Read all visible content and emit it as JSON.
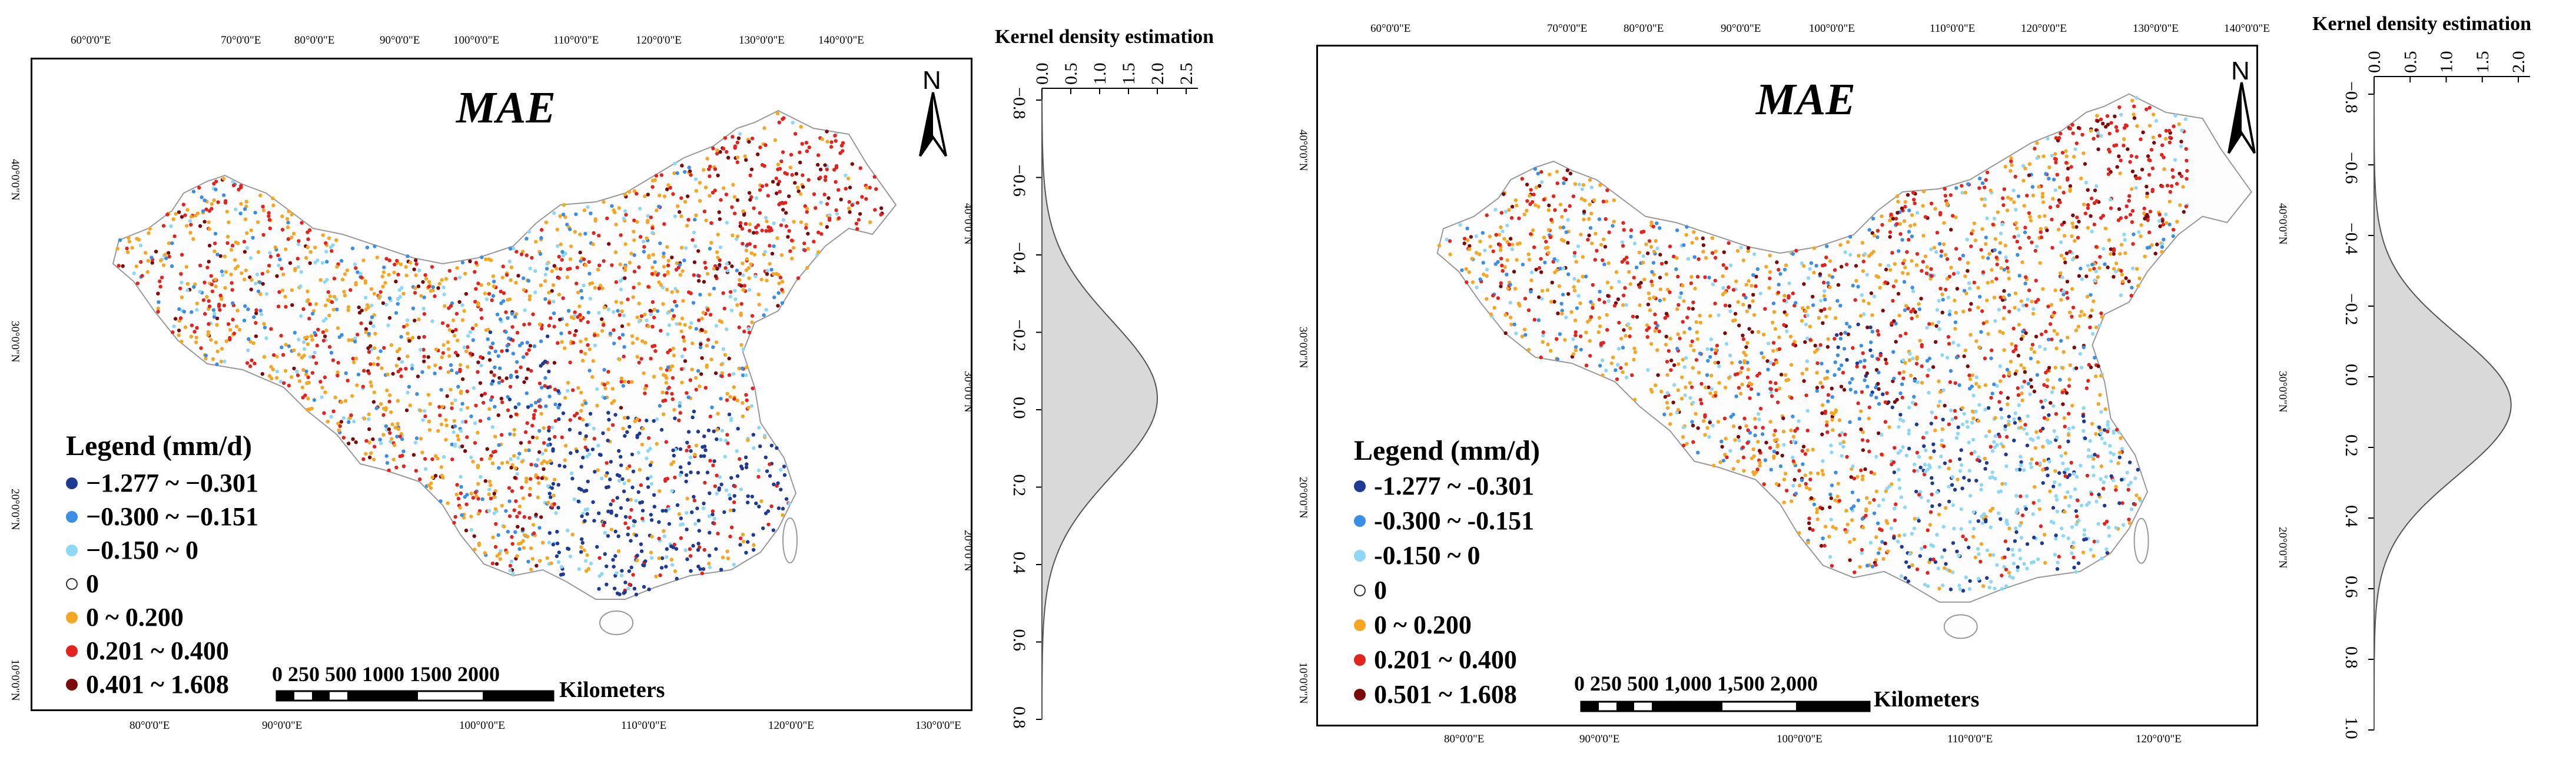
{
  "maps": [
    {
      "title": "MAE",
      "north_label": "N",
      "top_lon_labels": [
        "60°0'0\"E",
        "70°0'0\"E",
        "80°0'0\"E",
        "90°0'0\"E",
        "100°0'0\"E",
        "110°0'0\"E",
        "120°0'0\"E",
        "130°0'0\"E",
        "140°0'0\"E"
      ],
      "bottom_lon_labels": [
        "80°0'0\"E",
        "90°0'0\"E",
        "100°0'0\"E",
        "110°0'0\"E",
        "120°0'0\"E",
        "130°0'0\"E"
      ],
      "left_lat_labels": [
        "40°0'0\"N",
        "30°0'0\"N",
        "20°0'0\"N",
        "10°0'0\"N"
      ],
      "right_lat_labels": [
        "40°0'0\"N",
        "30°0'0\"N",
        "20°0'0\"N"
      ],
      "legend": {
        "title": "Legend (mm/d)",
        "items": [
          {
            "label": "−1.277 ~ −0.301",
            "color": "#1f3a93"
          },
          {
            "label": "−0.300 ~ −0.151",
            "color": "#3a8ee6"
          },
          {
            "label": "−0.150 ~ 0",
            "color": "#8fd8f5"
          },
          {
            "label": "0",
            "color": "#ffffff"
          },
          {
            "label": "0 ~ 0.200",
            "color": "#f5a623"
          },
          {
            "label": "0.201 ~ 0.400",
            "color": "#e3231d"
          },
          {
            "label": "0.401 ~ 1.608",
            "color": "#7d0a0a"
          }
        ]
      },
      "scale_bar": {
        "numbers": "0   250 500     1000     1500    2000",
        "unit": "Kilometers"
      },
      "kde": {
        "title": "Kernel density estimation",
        "x_ticks": [
          "0.0",
          "0.5",
          "1.0",
          "1.5",
          "2.0",
          "2.5"
        ],
        "y_ticks": [
          "−0.8",
          "−0.6",
          "−0.4",
          "−0.2",
          "0.0",
          "0.2",
          "0.4",
          "0.6",
          "0.8"
        ],
        "x_range": [
          0,
          2.5
        ],
        "y_range": [
          -0.8,
          0.8
        ],
        "mean": -0.03,
        "sd": 0.2,
        "peak": 2.0
      }
    },
    {
      "title": "MAE",
      "north_label": "N",
      "top_lon_labels": [
        "60°0'0\"E",
        "70°0'0\"E",
        "80°0'0\"E",
        "90°0'0\"E",
        "100°0'0\"E",
        "110°0'0\"E",
        "120°0'0\"E",
        "130°0'0\"E",
        "140°0'0\"E"
      ],
      "bottom_lon_labels": [
        "80°0'0\"E",
        "90°0'0\"E",
        "100°0'0\"E",
        "110°0'0\"E",
        "120°0'0\"E"
      ],
      "left_lat_labels": [
        "40°0'0\"N",
        "30°0'0\"N",
        "20°0'0\"N",
        "10°0'0\"N"
      ],
      "right_lat_labels": [
        "40°0'0\"N",
        "30°0'0\"N",
        "20°0'0\"N"
      ],
      "legend": {
        "title": "Legend (mm/d)",
        "items": [
          {
            "label": "-1.277 ~ -0.301",
            "color": "#1f3a93"
          },
          {
            "label": "-0.300 ~ -0.151",
            "color": "#3a8ee6"
          },
          {
            "label": "-0.150 ~ 0",
            "color": "#8fd8f5"
          },
          {
            "label": "0",
            "color": "#ffffff"
          },
          {
            "label": "0 ~ 0.200",
            "color": "#f5a623"
          },
          {
            "label": "0.201 ~ 0.400",
            "color": "#e3231d"
          },
          {
            "label": "0.501 ~ 1.608",
            "color": "#7d0a0a"
          }
        ]
      },
      "scale_bar": {
        "numbers": "0  250 500     1,000   1,500   2,000",
        "unit": "Kilometers"
      },
      "kde": {
        "title": "Kernel density estimation",
        "x_ticks": [
          "0.0",
          "0.5",
          "1.0",
          "1.5",
          "2.0"
        ],
        "y_ticks": [
          "−0.8",
          "−0.6",
          "−0.4",
          "−0.2",
          "0.0",
          "0.2",
          "0.4",
          "0.6",
          "0.8",
          "1.0"
        ],
        "x_range": [
          0,
          2.0
        ],
        "y_range": [
          -0.8,
          1.0
        ],
        "mean": 0.08,
        "sd": 0.2,
        "peak": 1.9
      }
    }
  ]
}
